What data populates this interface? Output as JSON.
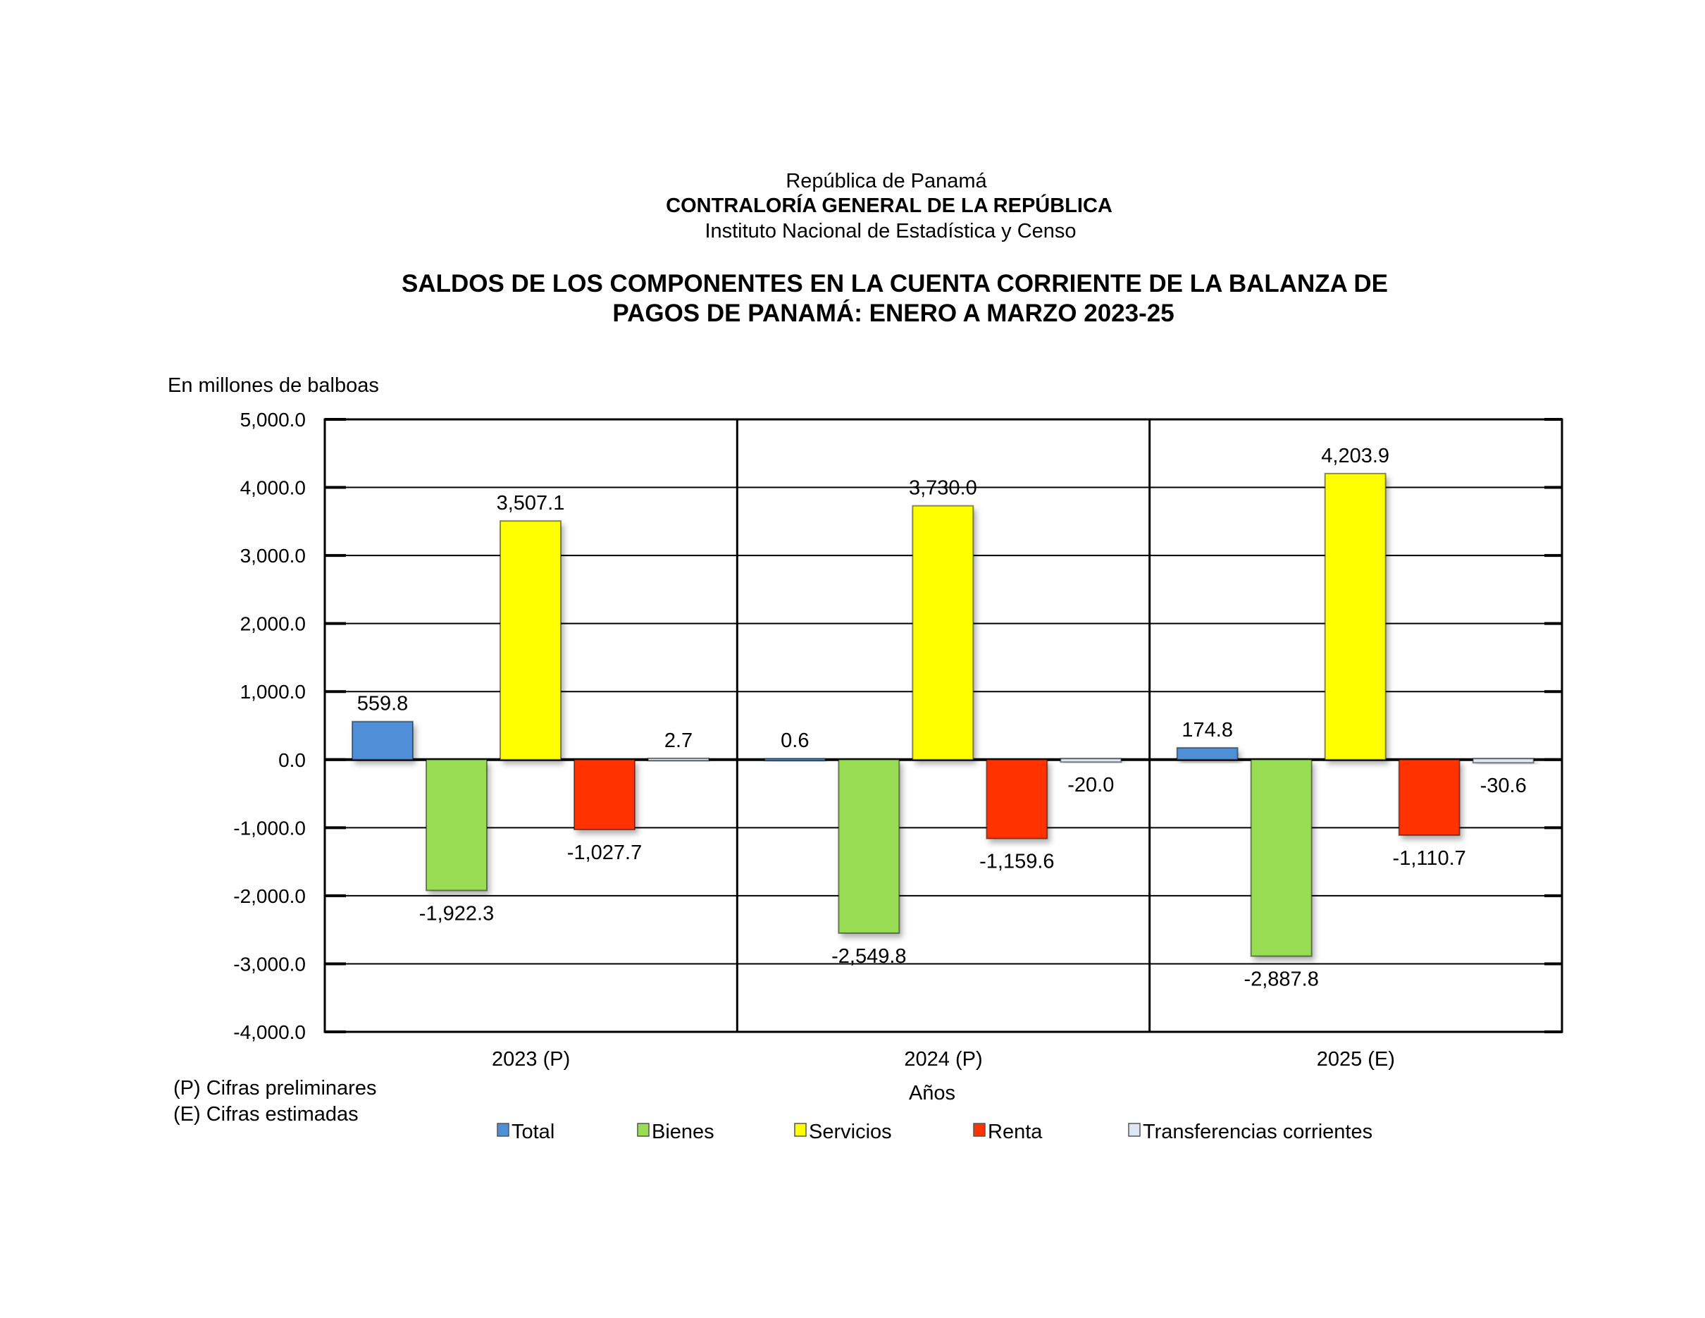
{
  "header": {
    "line1": "República de Panamá",
    "line2": "CONTRALORÍA GENERAL DE LA REPÚBLICA",
    "line3": "Instituto Nacional de Estadística y Censo"
  },
  "notes": [
    "(P) Cifras preliminares",
    "(E) Cifras estimadas"
  ],
  "colors": {
    "Total": "#4f8fd8",
    "Bienes": "#99dd55",
    "Servicios": "#ffff00",
    "Renta": "#ff3300",
    "Transferencias corrientes": "#dfe8f2"
  },
  "chart_data": {
    "type": "bar",
    "title": [
      "SALDOS DE LOS COMPONENTES EN LA CUENTA CORRIENTE DE LA BALANZA DE",
      "PAGOS DE PANAMÁ: ENERO A MARZO 2023-25"
    ],
    "ylabel": "En millones de balboas",
    "xlabel": "Años",
    "ylim": [
      -4000,
      5000
    ],
    "yticks": [
      "5,000.0",
      "4,000.0",
      "3,000.0",
      "2,000.0",
      "1,000.0",
      "0.0",
      "-1,000.0",
      "-2,000.0",
      "-3,000.0",
      "-4,000.0"
    ],
    "ytick_values": [
      5000,
      4000,
      3000,
      2000,
      1000,
      0,
      -1000,
      -2000,
      -3000,
      -4000
    ],
    "grid": true,
    "legend_position": "bottom",
    "categories": [
      "2023 (P)",
      "2024 (P)",
      "2025 (E)"
    ],
    "series": [
      {
        "name": "Total",
        "values": [
          559.8,
          0.6,
          174.8
        ],
        "labels": [
          "559.8",
          "0.6",
          "174.8"
        ]
      },
      {
        "name": "Bienes",
        "values": [
          -1922.3,
          -2549.8,
          -2887.8
        ],
        "labels": [
          "-1,922.3",
          "-2,549.8",
          "-2,887.8"
        ]
      },
      {
        "name": "Servicios",
        "values": [
          3507.1,
          3730.0,
          4203.9
        ],
        "labels": [
          "3,507.1",
          "3,730.0",
          "4,203.9"
        ]
      },
      {
        "name": "Renta",
        "values": [
          -1027.7,
          -1159.6,
          -1110.7
        ],
        "labels": [
          "-1,027.7",
          "-1,159.6",
          "-1,110.7"
        ]
      },
      {
        "name": "Transferencias corrientes",
        "values": [
          2.7,
          -20.0,
          -30.6
        ],
        "labels": [
          "2.7",
          "-20.0",
          "-30.6"
        ]
      }
    ]
  }
}
